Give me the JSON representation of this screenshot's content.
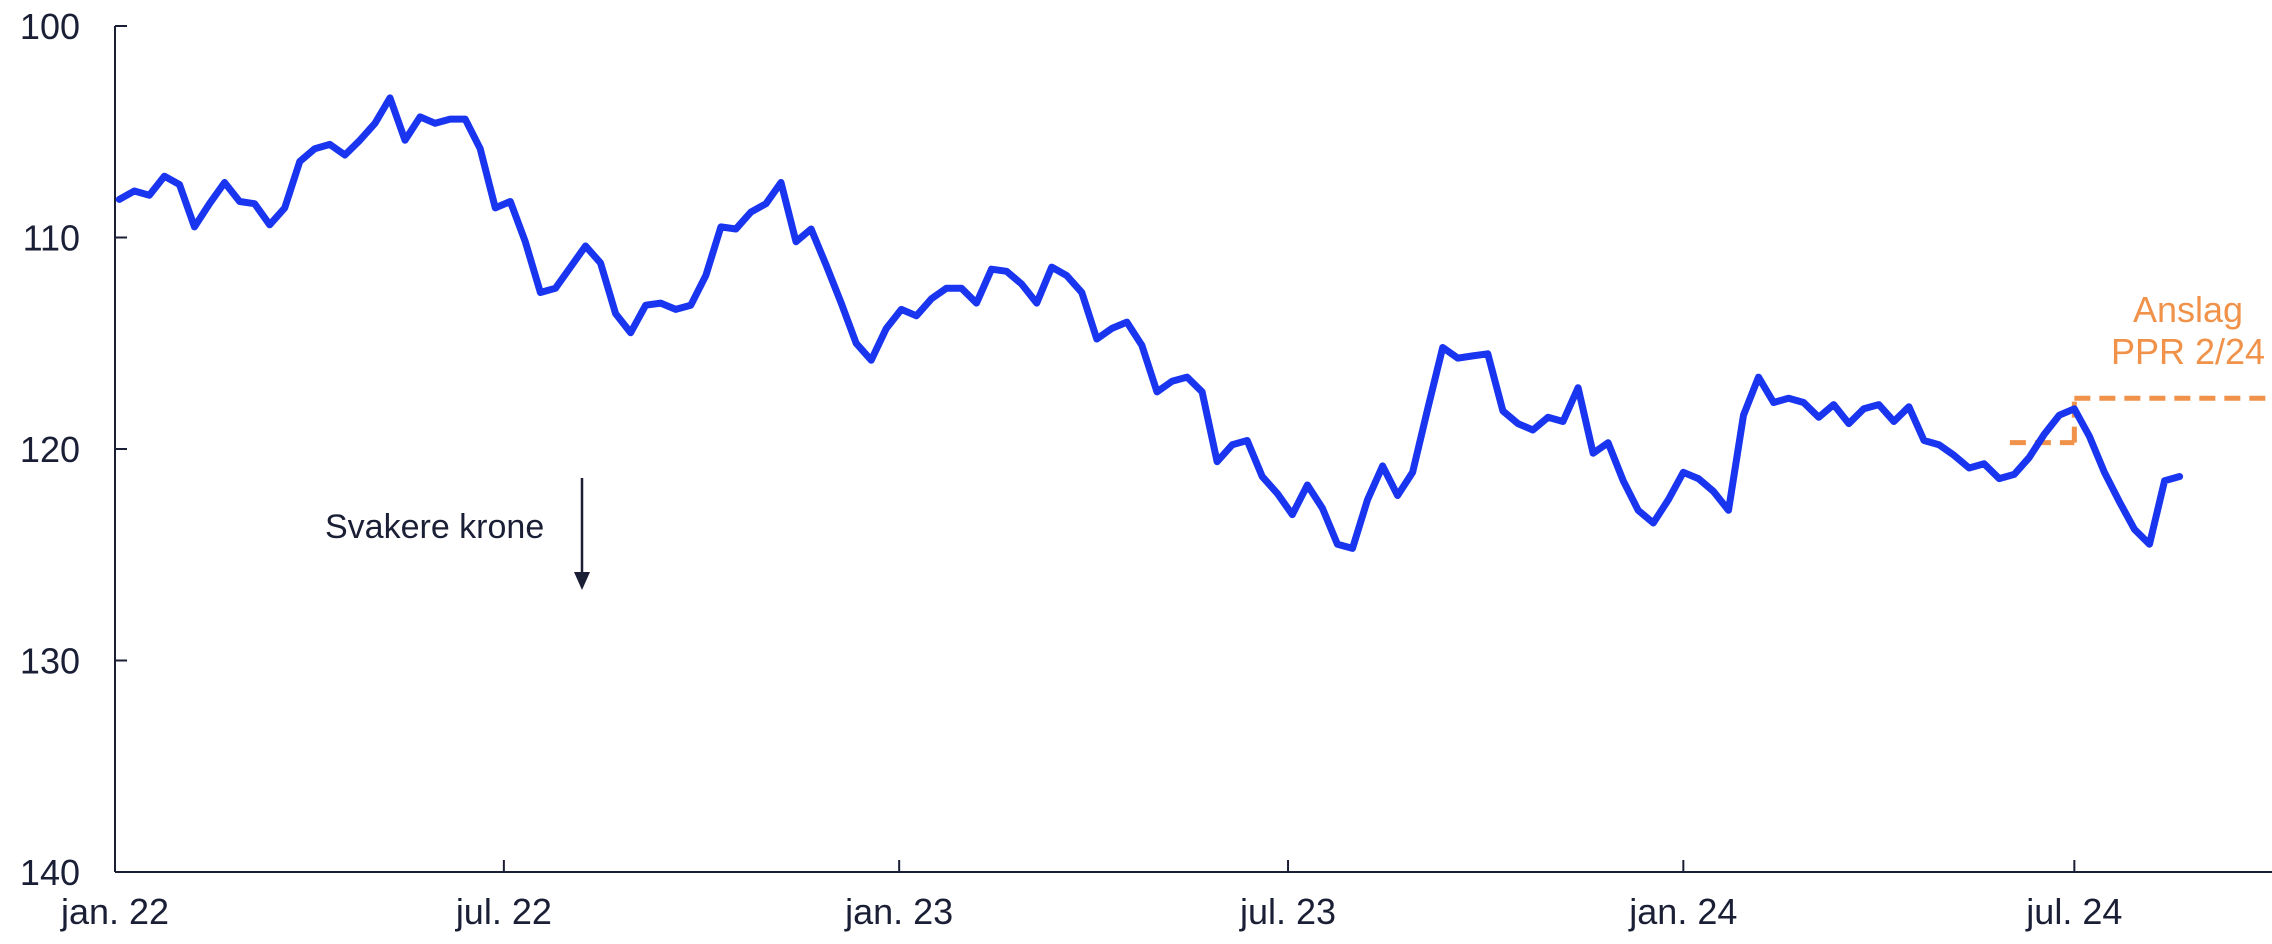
{
  "chart_data": {
    "type": "line",
    "title": "",
    "xlabel": "",
    "ylabel": "",
    "y_inverted": true,
    "ylim": [
      100,
      140
    ],
    "yticks": [
      100,
      110,
      120,
      130,
      140
    ],
    "xlim": [
      "2022-01-01",
      "2024-10-01"
    ],
    "x_ticks": [
      {
        "date": "2022-01-01",
        "label": "jan. 22"
      },
      {
        "date": "2022-07-01",
        "label": "jul. 22"
      },
      {
        "date": "2023-01-01",
        "label": "jan. 23"
      },
      {
        "date": "2023-07-01",
        "label": "jul. 23"
      },
      {
        "date": "2024-01-01",
        "label": "jan. 24"
      },
      {
        "date": "2024-07-01",
        "label": "jul. 24"
      }
    ],
    "grid": false,
    "colors": {
      "series": "#1a35f0",
      "forecast": "#f0924a",
      "axis": "#1a1f36",
      "text": "#1a1f36"
    },
    "series": [
      {
        "name": "",
        "points": [
          [
            "2022-01-03",
            108.2
          ],
          [
            "2022-01-10",
            107.8
          ],
          [
            "2022-01-17",
            108.0
          ],
          [
            "2022-01-24",
            107.1
          ],
          [
            "2022-01-31",
            107.5
          ],
          [
            "2022-02-07",
            109.5
          ],
          [
            "2022-02-14",
            108.4
          ],
          [
            "2022-02-21",
            107.4
          ],
          [
            "2022-02-28",
            108.3
          ],
          [
            "2022-03-07",
            108.4
          ],
          [
            "2022-03-14",
            109.4
          ],
          [
            "2022-03-21",
            108.6
          ],
          [
            "2022-03-28",
            106.4
          ],
          [
            "2022-04-04",
            105.8
          ],
          [
            "2022-04-11",
            105.6
          ],
          [
            "2022-04-18",
            106.1
          ],
          [
            "2022-04-25",
            105.4
          ],
          [
            "2022-05-02",
            104.6
          ],
          [
            "2022-05-09",
            103.4
          ],
          [
            "2022-05-16",
            105.4
          ],
          [
            "2022-05-23",
            104.3
          ],
          [
            "2022-05-30",
            104.6
          ],
          [
            "2022-06-06",
            104.4
          ],
          [
            "2022-06-13",
            104.4
          ],
          [
            "2022-06-20",
            105.8
          ],
          [
            "2022-06-27",
            108.6
          ],
          [
            "2022-07-04",
            108.3
          ],
          [
            "2022-07-11",
            110.2
          ],
          [
            "2022-07-18",
            112.6
          ],
          [
            "2022-07-25",
            112.4
          ],
          [
            "2022-08-01",
            111.4
          ],
          [
            "2022-08-08",
            110.4
          ],
          [
            "2022-08-15",
            111.2
          ],
          [
            "2022-08-22",
            113.6
          ],
          [
            "2022-08-29",
            114.5
          ],
          [
            "2022-09-05",
            113.2
          ],
          [
            "2022-09-12",
            113.1
          ],
          [
            "2022-09-19",
            113.4
          ],
          [
            "2022-09-26",
            113.2
          ],
          [
            "2022-10-03",
            111.8
          ],
          [
            "2022-10-10",
            109.5
          ],
          [
            "2022-10-17",
            109.6
          ],
          [
            "2022-10-24",
            108.8
          ],
          [
            "2022-10-31",
            108.4
          ],
          [
            "2022-11-07",
            107.4
          ],
          [
            "2022-11-14",
            110.2
          ],
          [
            "2022-11-21",
            109.6
          ],
          [
            "2022-11-28",
            111.3
          ],
          [
            "2022-12-05",
            113.1
          ],
          [
            "2022-12-12",
            115.0
          ],
          [
            "2022-12-19",
            115.8
          ],
          [
            "2022-12-26",
            114.3
          ],
          [
            "2023-01-02",
            113.4
          ],
          [
            "2023-01-09",
            113.7
          ],
          [
            "2023-01-16",
            112.9
          ],
          [
            "2023-01-23",
            112.4
          ],
          [
            "2023-01-30",
            112.4
          ],
          [
            "2023-02-06",
            113.1
          ],
          [
            "2023-02-13",
            111.5
          ],
          [
            "2023-02-20",
            111.6
          ],
          [
            "2023-02-27",
            112.2
          ],
          [
            "2023-03-06",
            113.1
          ],
          [
            "2023-03-13",
            111.4
          ],
          [
            "2023-03-20",
            111.8
          ],
          [
            "2023-03-27",
            112.6
          ],
          [
            "2023-04-03",
            114.8
          ],
          [
            "2023-04-10",
            114.3
          ],
          [
            "2023-04-17",
            114.0
          ],
          [
            "2023-04-24",
            115.1
          ],
          [
            "2023-05-01",
            117.3
          ],
          [
            "2023-05-08",
            116.8
          ],
          [
            "2023-05-15",
            116.6
          ],
          [
            "2023-05-22",
            117.3
          ],
          [
            "2023-05-29",
            120.6
          ],
          [
            "2023-06-05",
            119.8
          ],
          [
            "2023-06-12",
            119.6
          ],
          [
            "2023-06-19",
            121.3
          ],
          [
            "2023-06-26",
            122.1
          ],
          [
            "2023-07-03",
            123.1
          ],
          [
            "2023-07-10",
            121.7
          ],
          [
            "2023-07-17",
            122.8
          ],
          [
            "2023-07-24",
            124.5
          ],
          [
            "2023-07-31",
            124.7
          ],
          [
            "2023-08-07",
            122.4
          ],
          [
            "2023-08-14",
            120.8
          ],
          [
            "2023-08-21",
            122.2
          ],
          [
            "2023-08-28",
            121.1
          ],
          [
            "2023-09-04",
            118.1
          ],
          [
            "2023-09-11",
            115.2
          ],
          [
            "2023-09-18",
            115.7
          ],
          [
            "2023-09-25",
            115.6
          ],
          [
            "2023-10-02",
            115.5
          ],
          [
            "2023-10-09",
            118.2
          ],
          [
            "2023-10-16",
            118.8
          ],
          [
            "2023-10-23",
            119.1
          ],
          [
            "2023-10-30",
            118.5
          ],
          [
            "2023-11-06",
            118.7
          ],
          [
            "2023-11-13",
            117.1
          ],
          [
            "2023-11-20",
            120.2
          ],
          [
            "2023-11-27",
            119.7
          ],
          [
            "2023-12-04",
            121.5
          ],
          [
            "2023-12-11",
            122.9
          ],
          [
            "2023-12-18",
            123.5
          ],
          [
            "2023-12-25",
            122.4
          ],
          [
            "2024-01-01",
            121.1
          ],
          [
            "2024-01-08",
            121.4
          ],
          [
            "2024-01-15",
            122.0
          ],
          [
            "2024-01-22",
            122.9
          ],
          [
            "2024-01-29",
            118.4
          ],
          [
            "2024-02-05",
            116.6
          ],
          [
            "2024-02-12",
            117.8
          ],
          [
            "2024-02-19",
            117.6
          ],
          [
            "2024-02-26",
            117.8
          ],
          [
            "2024-03-04",
            118.5
          ],
          [
            "2024-03-11",
            117.9
          ],
          [
            "2024-03-18",
            118.8
          ],
          [
            "2024-03-25",
            118.1
          ],
          [
            "2024-04-01",
            117.9
          ],
          [
            "2024-04-08",
            118.7
          ],
          [
            "2024-04-15",
            118.0
          ],
          [
            "2024-04-22",
            119.6
          ],
          [
            "2024-04-29",
            119.8
          ],
          [
            "2024-05-06",
            120.3
          ],
          [
            "2024-05-13",
            120.9
          ],
          [
            "2024-05-20",
            120.7
          ],
          [
            "2024-05-27",
            121.4
          ],
          [
            "2024-06-03",
            121.2
          ],
          [
            "2024-06-10",
            120.4
          ],
          [
            "2024-06-17",
            119.3
          ],
          [
            "2024-06-24",
            118.4
          ],
          [
            "2024-07-01",
            118.1
          ],
          [
            "2024-07-08",
            119.4
          ],
          [
            "2024-07-15",
            121.1
          ],
          [
            "2024-07-22",
            122.5
          ],
          [
            "2024-07-29",
            123.8
          ],
          [
            "2024-08-05",
            124.5
          ],
          [
            "2024-08-12",
            121.5
          ],
          [
            "2024-08-19",
            121.3
          ]
        ]
      }
    ],
    "forecast": {
      "label_lines": [
        "Anslag",
        "PPR 2/24"
      ],
      "segments": [
        {
          "x": [
            "2024-06-01",
            "2024-07-01"
          ],
          "y": [
            119.7,
            119.7
          ]
        },
        {
          "x": [
            "2024-07-01",
            "2024-07-01"
          ],
          "y": [
            119.7,
            117.6
          ]
        },
        {
          "x": [
            "2024-07-01",
            "2024-10-01"
          ],
          "y": [
            117.6,
            117.6
          ]
        }
      ]
    },
    "annotations": [
      {
        "text": "Svakere krone",
        "arrow": "down"
      }
    ]
  }
}
